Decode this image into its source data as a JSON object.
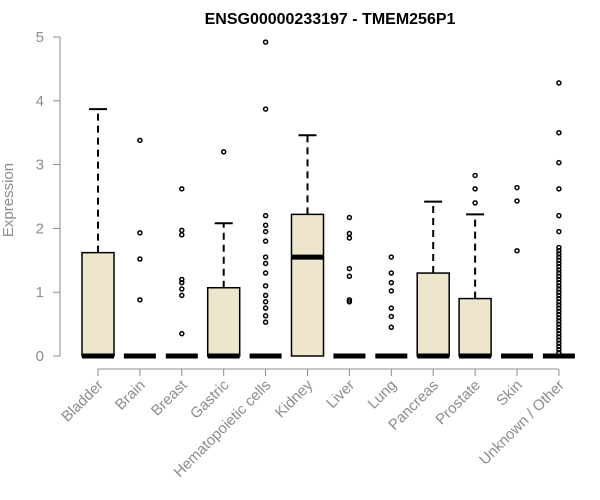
{
  "chart_data": {
    "type": "boxplot",
    "title": "ENSG00000233197 - TMEM256P1",
    "xlabel": "",
    "ylabel": "Expression",
    "ylim": [
      0,
      5
    ],
    "yticks": [
      0,
      1,
      2,
      3,
      4,
      5
    ],
    "grid": false,
    "colors": {
      "box_fill": "#ede6cd",
      "stroke": "#000000",
      "axis_text": "#8c8c8c"
    },
    "categories": [
      "Bladder",
      "Brain",
      "Breast",
      "Gastric",
      "Hematopoietic cells",
      "Kidney",
      "Liver",
      "Lung",
      "Pancreas",
      "Prostate",
      "Skin",
      "Unknown / Other"
    ],
    "boxes": [
      {
        "q1": 0,
        "median": 0,
        "q3": 1.62,
        "whisker_low": 0,
        "whisker_high": 3.87,
        "outliers": []
      },
      {
        "q1": 0,
        "median": 0,
        "q3": 0,
        "whisker_low": 0,
        "whisker_high": 0,
        "outliers": [
          0.88,
          1.52,
          1.93,
          3.38
        ]
      },
      {
        "q1": 0,
        "median": 0,
        "q3": 0,
        "whisker_low": 0,
        "whisker_high": 0,
        "outliers": [
          0.35,
          0.95,
          1.05,
          1.15,
          1.2,
          1.9,
          1.97,
          2.62
        ]
      },
      {
        "q1": 0,
        "median": 0,
        "q3": 1.07,
        "whisker_low": 0,
        "whisker_high": 2.08,
        "outliers": [
          3.2
        ]
      },
      {
        "q1": 0,
        "median": 0,
        "q3": 0,
        "whisker_low": 0,
        "whisker_high": 0,
        "outliers": [
          0.53,
          0.63,
          0.75,
          0.85,
          0.95,
          1.1,
          1.3,
          1.45,
          1.55,
          1.8,
          1.95,
          2.05,
          2.2,
          3.87,
          4.92
        ]
      },
      {
        "q1": 0,
        "median": 1.55,
        "q3": 2.22,
        "whisker_low": 0,
        "whisker_high": 3.46,
        "outliers": []
      },
      {
        "q1": 0,
        "median": 0,
        "q3": 0,
        "whisker_low": 0,
        "whisker_high": 0,
        "outliers": [
          0.85,
          0.88,
          1.25,
          1.37,
          1.85,
          1.92,
          2.17
        ]
      },
      {
        "q1": 0,
        "median": 0,
        "q3": 0,
        "whisker_low": 0,
        "whisker_high": 0,
        "outliers": [
          0.45,
          0.62,
          0.75,
          1.02,
          1.15,
          1.3,
          1.55
        ]
      },
      {
        "q1": 0,
        "median": 0,
        "q3": 1.3,
        "whisker_low": 0,
        "whisker_high": 2.42,
        "outliers": []
      },
      {
        "q1": 0,
        "median": 0,
        "q3": 0.9,
        "whisker_low": 0,
        "whisker_high": 2.22,
        "outliers": [
          2.4,
          2.62,
          2.83
        ]
      },
      {
        "q1": 0,
        "median": 0,
        "q3": 0,
        "whisker_low": 0,
        "whisker_high": 0,
        "outliers": [
          1.65,
          2.43,
          2.64
        ]
      },
      {
        "q1": 0,
        "median": 0,
        "q3": 0,
        "whisker_low": 0,
        "whisker_high": 0,
        "outliers": [
          0.05,
          0.1,
          0.15,
          0.2,
          0.25,
          0.3,
          0.35,
          0.4,
          0.45,
          0.5,
          0.55,
          0.6,
          0.65,
          0.7,
          0.75,
          0.8,
          0.85,
          0.9,
          0.95,
          1.0,
          1.05,
          1.1,
          1.15,
          1.2,
          1.25,
          1.3,
          1.35,
          1.4,
          1.45,
          1.5,
          1.55,
          1.6,
          1.65,
          1.7,
          1.95,
          2.2,
          2.62,
          3.03,
          3.5,
          4.28
        ]
      }
    ]
  }
}
